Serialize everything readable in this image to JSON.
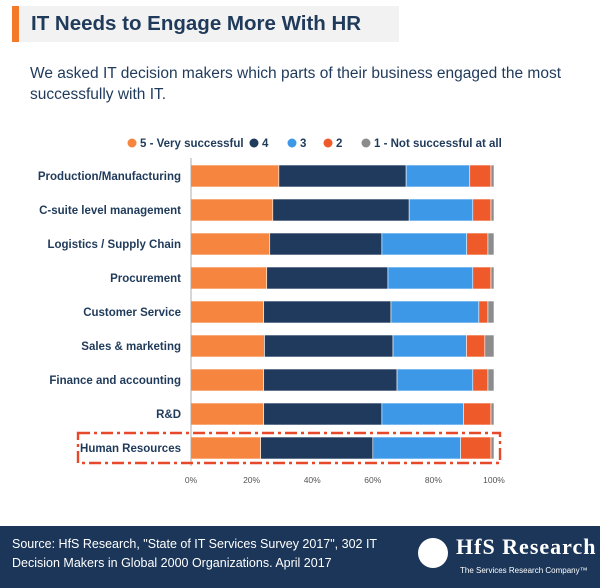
{
  "title": "IT Needs to Engage More With HR",
  "subtitle": "We asked IT decision makers which parts of their business engaged the most successfully with IT.",
  "footer": {
    "source": "Source: HfS Research, \"State of IT Services Survey 2017\", 302 IT Decision Makers in Global 2000 Organizations. April 2017",
    "logo_name": "HfS Research",
    "logo_tagline": "The Services Research Company™"
  },
  "highlight_color": "#e8482a",
  "chart_data": {
    "type": "bar",
    "orientation": "horizontal",
    "stacked": "percent",
    "categories": [
      "Production/Manufacturing",
      "C-suite level management",
      "Logistics / Supply Chain",
      "Procurement",
      "Customer Service",
      "Sales & marketing",
      "Finance and accounting",
      "R&D",
      "Human Resources"
    ],
    "series": [
      {
        "name": "5 - Very successful",
        "color": "#f5853f",
        "values": [
          29,
          27,
          26,
          25,
          24,
          24,
          24,
          24,
          23
        ]
      },
      {
        "name": "4",
        "color": "#1f3a5c",
        "values": [
          42,
          45,
          37,
          40,
          42,
          42,
          44,
          39,
          37
        ]
      },
      {
        "name": "3",
        "color": "#3d99e8",
        "values": [
          21,
          21,
          28,
          28,
          29,
          24,
          25,
          27,
          29
        ]
      },
      {
        "name": "2",
        "color": "#ef5a2a",
        "values": [
          7,
          6,
          7,
          6,
          3,
          6,
          5,
          9,
          10
        ]
      },
      {
        "name": "1 - Not successful at all",
        "color": "#8c8c8c",
        "values": [
          1,
          1,
          2,
          1,
          2,
          3,
          2,
          1,
          1
        ]
      }
    ],
    "x_ticks": [
      "0%",
      "20%",
      "40%",
      "60%",
      "80%",
      "100%"
    ],
    "xlim": [
      0,
      100
    ],
    "legend_position": "top",
    "grid": false,
    "highlighted_category": "Human Resources"
  }
}
